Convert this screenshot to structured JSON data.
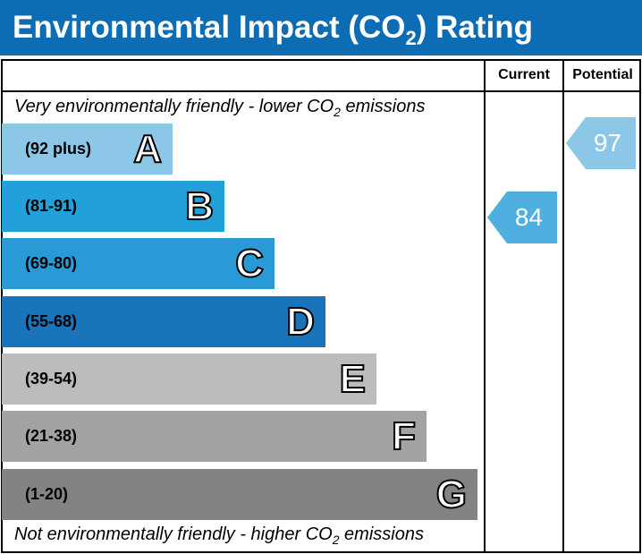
{
  "title": {
    "main": "Environmental Impact (CO",
    "sub": "2",
    "end": ") Rating"
  },
  "columns": {
    "current": "Current",
    "potential": "Potential"
  },
  "notes": {
    "top": {
      "a": "Very environmentally friendly - lower CO",
      "sub": "2",
      "b": " emissions"
    },
    "bottom": {
      "a": "Not environmentally friendly - higher CO",
      "sub": "2",
      "b": " emissions"
    }
  },
  "chart_data": {
    "type": "bar",
    "bands": [
      {
        "letter": "A",
        "range": "(92 plus)",
        "color": "#8cc7e8"
      },
      {
        "letter": "B",
        "range": "(81-91)",
        "color": "#22a0d9"
      },
      {
        "letter": "C",
        "range": "(69-80)",
        "color": "#2a9ad6"
      },
      {
        "letter": "D",
        "range": "(55-68)",
        "color": "#1a74b9"
      },
      {
        "letter": "E",
        "range": "(39-54)",
        "color": "#bdbcba"
      },
      {
        "letter": "F",
        "range": "(21-38)",
        "color": "#a3a3a3"
      },
      {
        "letter": "G",
        "range": "(1-20)",
        "color": "#838383"
      }
    ],
    "current": {
      "value": "84",
      "band": "B",
      "color": "#4eafe0"
    },
    "potential": {
      "value": "97",
      "band": "A",
      "color": "#8cc7e8"
    }
  }
}
